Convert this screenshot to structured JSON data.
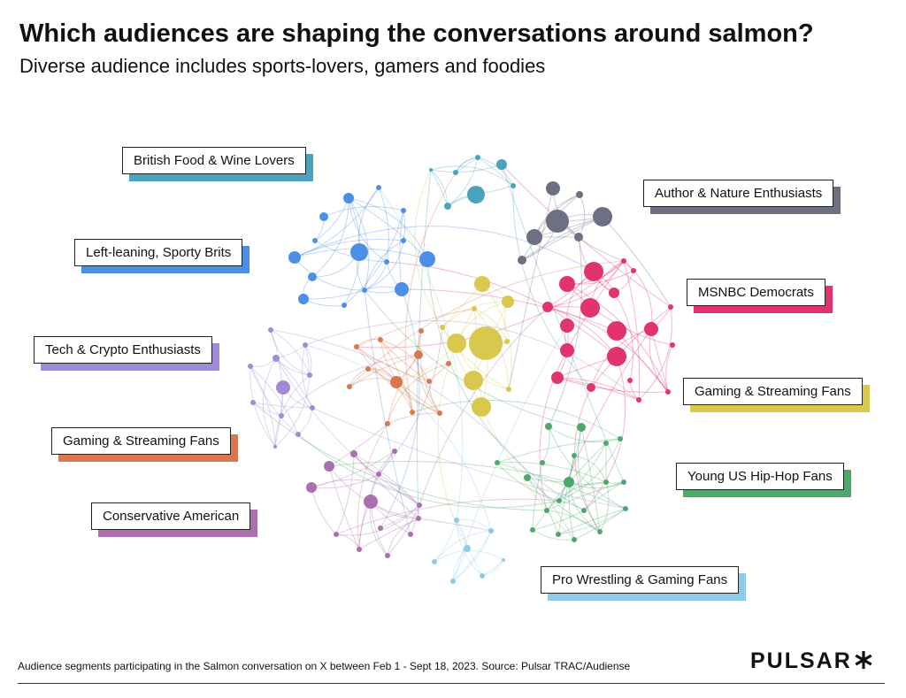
{
  "header": {
    "title": "Which audiences are shaping the conversations around salmon?",
    "subtitle": "Diverse audience includes sports-lovers, gamers and foodies"
  },
  "segments": [
    {
      "label": "British Food & Wine Lovers",
      "color": "#4aa3bd"
    },
    {
      "label": "Author & Nature Enthusiasts",
      "color": "#6c7082"
    },
    {
      "label": "Left-leaning, Sporty Brits",
      "color": "#4b8fe6"
    },
    {
      "label": "MSNBC Democrats",
      "color": "#e0336f"
    },
    {
      "label": "Tech & Crypto Enthusiasts",
      "color": "#9f8bd8"
    },
    {
      "label": "Gaming & Streaming Fans",
      "color": "#d8c84e"
    },
    {
      "label": "Gaming & Streaming Fans",
      "color": "#d8784c"
    },
    {
      "label": "Young US Hip-Hop Fans",
      "color": "#4ea86c"
    },
    {
      "label": "Conservative American",
      "color": "#a96fae"
    },
    {
      "label": "Pro Wrestling & Gaming Fans",
      "color": "#8ecbe8"
    }
  ],
  "footer": {
    "source": "Audience segments participating in the Salmon conversation on X between Feb 1 - Sept 18, 2023. Source: Pulsar TRAC/Audiense",
    "logo": "PULSAR"
  }
}
